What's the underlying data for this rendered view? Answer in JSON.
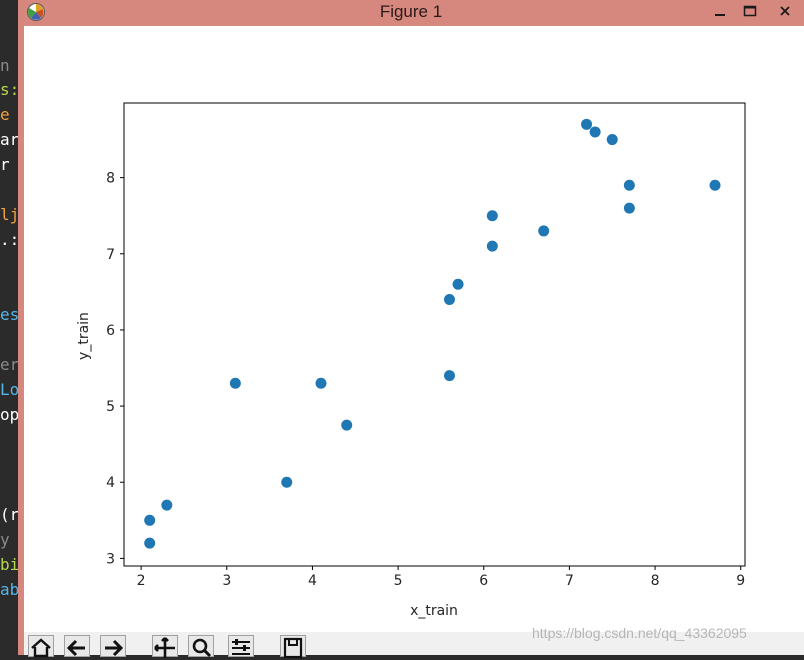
{
  "window": {
    "title": "Figure 1",
    "titlebar_color": "#d6877e",
    "app_icon": "matplotlib-icon"
  },
  "editor_fragments": [
    {
      "text": "n",
      "color": "#8a8a8a"
    },
    {
      "text": "s:",
      "color": "#b3d94a"
    },
    {
      "text": "e",
      "color": "#f0a040"
    },
    {
      "text": "ar",
      "color": "#ffffff"
    },
    {
      "text": "r",
      "color": "#ffffff"
    },
    {
      "text": "lj",
      "color": "#f0a040"
    },
    {
      "text": ".:",
      "color": "#ffffff"
    },
    {
      "text": "es",
      "color": "#56b6e8"
    },
    {
      "text": "er",
      "color": "#8a8a8a"
    },
    {
      "text": "Lo",
      "color": "#56b6e8"
    },
    {
      "text": "op",
      "color": "#ffffff"
    },
    {
      "text": "(r",
      "color": "#ffffff"
    },
    {
      "text": "y",
      "color": "#8a8a8a"
    },
    {
      "text": "bi",
      "color": "#b3d94a"
    },
    {
      "text": "ab",
      "color": "#56b6e8"
    }
  ],
  "toolbar": {
    "buttons": [
      "home-icon",
      "back-icon",
      "forward-icon",
      "pan-icon",
      "zoom-icon",
      "configure-subplots-icon",
      "save-icon"
    ]
  },
  "watermark": "https://blog.csdn.net/qq_43362095",
  "chart_data": {
    "type": "scatter",
    "title": "",
    "xlabel": "x_train",
    "ylabel": "y_train",
    "xlim": [
      1.8,
      9.05
    ],
    "ylim": [
      2.9,
      8.98
    ],
    "xticks": [
      2,
      3,
      4,
      5,
      6,
      7,
      8,
      9
    ],
    "yticks": [
      3,
      4,
      5,
      6,
      7,
      8
    ],
    "grid": false,
    "marker_color": "#1f77b4",
    "points": [
      {
        "x": 2.1,
        "y": 3.2
      },
      {
        "x": 2.1,
        "y": 3.5
      },
      {
        "x": 2.3,
        "y": 3.7
      },
      {
        "x": 3.1,
        "y": 5.3
      },
      {
        "x": 3.7,
        "y": 4.0
      },
      {
        "x": 4.1,
        "y": 5.3
      },
      {
        "x": 4.4,
        "y": 4.75
      },
      {
        "x": 5.6,
        "y": 5.4
      },
      {
        "x": 5.6,
        "y": 6.4
      },
      {
        "x": 5.7,
        "y": 6.6
      },
      {
        "x": 6.1,
        "y": 7.1
      },
      {
        "x": 6.1,
        "y": 7.5
      },
      {
        "x": 6.7,
        "y": 7.3
      },
      {
        "x": 7.2,
        "y": 8.7
      },
      {
        "x": 7.3,
        "y": 8.6
      },
      {
        "x": 7.5,
        "y": 8.5
      },
      {
        "x": 7.7,
        "y": 7.6
      },
      {
        "x": 7.7,
        "y": 7.9
      },
      {
        "x": 8.7,
        "y": 7.9
      }
    ]
  }
}
